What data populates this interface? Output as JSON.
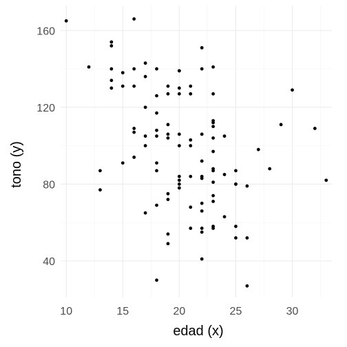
{
  "chart_data": {
    "type": "scatter",
    "title": "",
    "xlabel": "edad (x)",
    "ylabel": "tono (y)",
    "xlim": [
      9.5,
      33.5
    ],
    "ylim": [
      21,
      173
    ],
    "x_ticks": [
      10,
      15,
      20,
      25,
      30
    ],
    "y_ticks": [
      40,
      80,
      120,
      160
    ],
    "grid": true,
    "legend": "none",
    "series": [
      {
        "color": "#000000",
        "points": [
          [
            10,
            165
          ],
          [
            16,
            166
          ],
          [
            14,
            154
          ],
          [
            14,
            152
          ],
          [
            12,
            141
          ],
          [
            14,
            140
          ],
          [
            15,
            138
          ],
          [
            16,
            140
          ],
          [
            17,
            143
          ],
          [
            18,
            140
          ],
          [
            14,
            134
          ],
          [
            14,
            130
          ],
          [
            15,
            131
          ],
          [
            16,
            131
          ],
          [
            17,
            136
          ],
          [
            19,
            131
          ],
          [
            19,
            127
          ],
          [
            20,
            139
          ],
          [
            20,
            139
          ],
          [
            20,
            130
          ],
          [
            20,
            127
          ],
          [
            21,
            131
          ],
          [
            21,
            127
          ],
          [
            22,
            151
          ],
          [
            22,
            140
          ],
          [
            23,
            141
          ],
          [
            23,
            127
          ],
          [
            18,
            126
          ],
          [
            17,
            120
          ],
          [
            18,
            117
          ],
          [
            16,
            109
          ],
          [
            16,
            107
          ],
          [
            17,
            105
          ],
          [
            18,
            108
          ],
          [
            18,
            105
          ],
          [
            19,
            111
          ],
          [
            19,
            106
          ],
          [
            17,
            100
          ],
          [
            19,
            104
          ],
          [
            20,
            106
          ],
          [
            20,
            100
          ],
          [
            21,
            103
          ],
          [
            21,
            100
          ],
          [
            22,
            106
          ],
          [
            23,
            113
          ],
          [
            23,
            112
          ],
          [
            23,
            110
          ],
          [
            23,
            104
          ],
          [
            23,
            97
          ],
          [
            24,
            105
          ],
          [
            29,
            111
          ],
          [
            32,
            109
          ],
          [
            30,
            129
          ],
          [
            16,
            94
          ],
          [
            15,
            91
          ],
          [
            13,
            87
          ],
          [
            18,
            91
          ],
          [
            18,
            87
          ],
          [
            19,
            75
          ],
          [
            19,
            72
          ],
          [
            20,
            84
          ],
          [
            20,
            82
          ],
          [
            20,
            80
          ],
          [
            20,
            78
          ],
          [
            21,
            84
          ],
          [
            22,
            92
          ],
          [
            22,
            84
          ],
          [
            22,
            83
          ],
          [
            23,
            88
          ],
          [
            23,
            87
          ],
          [
            23,
            81
          ],
          [
            23,
            74
          ],
          [
            23,
            71
          ],
          [
            24,
            85
          ],
          [
            25,
            87
          ],
          [
            25,
            80
          ],
          [
            25,
            80
          ],
          [
            26,
            79
          ],
          [
            27,
            98
          ],
          [
            28,
            88
          ],
          [
            33,
            82
          ],
          [
            13,
            77
          ],
          [
            17,
            65
          ],
          [
            18,
            69
          ],
          [
            21,
            68
          ],
          [
            22,
            70
          ],
          [
            22,
            66
          ],
          [
            21,
            57
          ],
          [
            22,
            57
          ],
          [
            22,
            55
          ],
          [
            23,
            58
          ],
          [
            23,
            57
          ],
          [
            24,
            63
          ],
          [
            25,
            58
          ],
          [
            25,
            52
          ],
          [
            26,
            52
          ],
          [
            19,
            54
          ],
          [
            19,
            49
          ],
          [
            22,
            41
          ],
          [
            18,
            30
          ],
          [
            26,
            27
          ]
        ]
      }
    ]
  }
}
